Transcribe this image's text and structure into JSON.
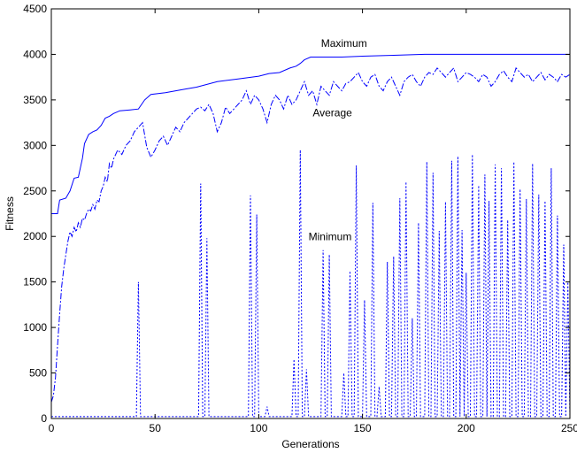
{
  "chart_data": {
    "type": "line",
    "title": "",
    "xlabel": "Generations",
    "ylabel": "Fitness",
    "xlim": [
      0,
      250
    ],
    "ylim": [
      0,
      4500
    ],
    "x_ticks": [
      0,
      50,
      100,
      150,
      200,
      250
    ],
    "y_ticks": [
      0,
      500,
      1000,
      1500,
      2000,
      2500,
      3000,
      3500,
      4000,
      4500
    ],
    "grid": false,
    "legend": "none",
    "series_color": "#0000ff",
    "annotations": [
      {
        "text": "Maximum",
        "x": 130,
        "y": 4080
      },
      {
        "text": "Average",
        "x": 126,
        "y": 3320
      },
      {
        "text": "Minimum",
        "x": 124,
        "y": 1960
      }
    ],
    "series": [
      {
        "key": "maximum",
        "style": "solid",
        "points": [
          [
            0,
            2250
          ],
          [
            3,
            2250
          ],
          [
            4,
            2400
          ],
          [
            7,
            2420
          ],
          [
            9,
            2500
          ],
          [
            11,
            2640
          ],
          [
            13,
            2650
          ],
          [
            15,
            2860
          ],
          [
            16,
            3020
          ],
          [
            18,
            3120
          ],
          [
            20,
            3150
          ],
          [
            22,
            3170
          ],
          [
            24,
            3220
          ],
          [
            26,
            3300
          ],
          [
            28,
            3320
          ],
          [
            30,
            3350
          ],
          [
            33,
            3380
          ],
          [
            38,
            3390
          ],
          [
            42,
            3400
          ],
          [
            45,
            3500
          ],
          [
            48,
            3560
          ],
          [
            55,
            3580
          ],
          [
            60,
            3600
          ],
          [
            65,
            3620
          ],
          [
            70,
            3640
          ],
          [
            80,
            3700
          ],
          [
            90,
            3730
          ],
          [
            100,
            3760
          ],
          [
            105,
            3790
          ],
          [
            110,
            3800
          ],
          [
            115,
            3850
          ],
          [
            118,
            3870
          ],
          [
            120,
            3900
          ],
          [
            122,
            3940
          ],
          [
            125,
            3970
          ],
          [
            140,
            3970
          ],
          [
            150,
            3980
          ],
          [
            165,
            3990
          ],
          [
            180,
            4000
          ],
          [
            250,
            4000
          ]
        ]
      },
      {
        "key": "average",
        "style": "dashdot",
        "points": [
          [
            0,
            180
          ],
          [
            1,
            250
          ],
          [
            2,
            450
          ],
          [
            3,
            800
          ],
          [
            4,
            1150
          ],
          [
            5,
            1450
          ],
          [
            6,
            1650
          ],
          [
            7,
            1800
          ],
          [
            8,
            1950
          ],
          [
            9,
            2050
          ],
          [
            10,
            2000
          ],
          [
            11,
            2100
          ],
          [
            12,
            2050
          ],
          [
            13,
            2150
          ],
          [
            14,
            2100
          ],
          [
            15,
            2200
          ],
          [
            16,
            2180
          ],
          [
            17,
            2250
          ],
          [
            18,
            2300
          ],
          [
            19,
            2280
          ],
          [
            20,
            2350
          ],
          [
            21,
            2300
          ],
          [
            22,
            2400
          ],
          [
            23,
            2380
          ],
          [
            24,
            2500
          ],
          [
            25,
            2550
          ],
          [
            26,
            2650
          ],
          [
            27,
            2600
          ],
          [
            28,
            2800
          ],
          [
            29,
            2750
          ],
          [
            30,
            2850
          ],
          [
            32,
            2950
          ],
          [
            34,
            2900
          ],
          [
            36,
            3000
          ],
          [
            38,
            3050
          ],
          [
            40,
            3150
          ],
          [
            42,
            3200
          ],
          [
            44,
            3250
          ],
          [
            46,
            2980
          ],
          [
            48,
            2870
          ],
          [
            50,
            2950
          ],
          [
            52,
            3050
          ],
          [
            54,
            3100
          ],
          [
            56,
            3000
          ],
          [
            58,
            3100
          ],
          [
            60,
            3200
          ],
          [
            62,
            3150
          ],
          [
            64,
            3250
          ],
          [
            66,
            3300
          ],
          [
            68,
            3350
          ],
          [
            70,
            3400
          ],
          [
            72,
            3420
          ],
          [
            74,
            3380
          ],
          [
            76,
            3450
          ],
          [
            78,
            3350
          ],
          [
            80,
            3150
          ],
          [
            82,
            3250
          ],
          [
            84,
            3420
          ],
          [
            86,
            3350
          ],
          [
            88,
            3400
          ],
          [
            90,
            3450
          ],
          [
            92,
            3500
          ],
          [
            94,
            3600
          ],
          [
            96,
            3450
          ],
          [
            98,
            3550
          ],
          [
            100,
            3500
          ],
          [
            102,
            3400
          ],
          [
            104,
            3250
          ],
          [
            106,
            3450
          ],
          [
            108,
            3550
          ],
          [
            110,
            3500
          ],
          [
            112,
            3400
          ],
          [
            114,
            3550
          ],
          [
            116,
            3450
          ],
          [
            118,
            3500
          ],
          [
            120,
            3600
          ],
          [
            122,
            3700
          ],
          [
            124,
            3550
          ],
          [
            126,
            3600
          ],
          [
            128,
            3450
          ],
          [
            130,
            3650
          ],
          [
            132,
            3600
          ],
          [
            134,
            3550
          ],
          [
            136,
            3700
          ],
          [
            138,
            3650
          ],
          [
            140,
            3600
          ],
          [
            142,
            3680
          ],
          [
            144,
            3700
          ],
          [
            146,
            3750
          ],
          [
            148,
            3800
          ],
          [
            150,
            3700
          ],
          [
            152,
            3650
          ],
          [
            154,
            3750
          ],
          [
            156,
            3780
          ],
          [
            158,
            3650
          ],
          [
            160,
            3600
          ],
          [
            162,
            3700
          ],
          [
            164,
            3750
          ],
          [
            166,
            3650
          ],
          [
            168,
            3550
          ],
          [
            170,
            3700
          ],
          [
            172,
            3750
          ],
          [
            174,
            3780
          ],
          [
            176,
            3700
          ],
          [
            178,
            3650
          ],
          [
            180,
            3750
          ],
          [
            182,
            3800
          ],
          [
            184,
            3780
          ],
          [
            186,
            3850
          ],
          [
            188,
            3800
          ],
          [
            190,
            3750
          ],
          [
            192,
            3800
          ],
          [
            194,
            3850
          ],
          [
            196,
            3700
          ],
          [
            198,
            3750
          ],
          [
            200,
            3800
          ],
          [
            202,
            3780
          ],
          [
            204,
            3750
          ],
          [
            206,
            3700
          ],
          [
            208,
            3780
          ],
          [
            210,
            3750
          ],
          [
            212,
            3650
          ],
          [
            214,
            3700
          ],
          [
            216,
            3780
          ],
          [
            218,
            3820
          ],
          [
            220,
            3750
          ],
          [
            222,
            3700
          ],
          [
            224,
            3850
          ],
          [
            226,
            3800
          ],
          [
            228,
            3750
          ],
          [
            230,
            3780
          ],
          [
            232,
            3700
          ],
          [
            234,
            3750
          ],
          [
            236,
            3800
          ],
          [
            238,
            3720
          ],
          [
            240,
            3780
          ],
          [
            242,
            3750
          ],
          [
            244,
            3700
          ],
          [
            246,
            3780
          ],
          [
            248,
            3750
          ],
          [
            250,
            3780
          ]
        ]
      },
      {
        "key": "minimum",
        "style": "dotted",
        "baseline": 20,
        "spikes": [
          [
            42,
            1500
          ],
          [
            72,
            2580
          ],
          [
            75,
            1980
          ],
          [
            96,
            2450
          ],
          [
            99,
            2240
          ],
          [
            104,
            130
          ],
          [
            117,
            650
          ],
          [
            120,
            2950
          ],
          [
            123,
            540
          ],
          [
            131,
            1850
          ],
          [
            134,
            1800
          ],
          [
            141,
            500
          ],
          [
            144,
            1620
          ],
          [
            147,
            2780
          ],
          [
            151,
            1300
          ],
          [
            155,
            2370
          ],
          [
            158,
            350
          ],
          [
            162,
            1720
          ],
          [
            165,
            1780
          ],
          [
            168,
            2420
          ],
          [
            171,
            2600
          ],
          [
            174,
            1100
          ],
          [
            177,
            2150
          ],
          [
            181,
            2820
          ],
          [
            184,
            2700
          ],
          [
            187,
            2060
          ],
          [
            190,
            2380
          ],
          [
            193,
            2830
          ],
          [
            196,
            2880
          ],
          [
            198,
            2070
          ],
          [
            200,
            1600
          ],
          [
            203,
            2900
          ],
          [
            206,
            2560
          ],
          [
            209,
            2680
          ],
          [
            211,
            2390
          ],
          [
            214,
            2790
          ],
          [
            217,
            2750
          ],
          [
            220,
            2180
          ],
          [
            223,
            2820
          ],
          [
            226,
            2520
          ],
          [
            229,
            2410
          ],
          [
            232,
            2800
          ],
          [
            235,
            2460
          ],
          [
            238,
            2390
          ],
          [
            241,
            2750
          ],
          [
            244,
            2230
          ],
          [
            247,
            1910
          ],
          [
            249,
            1500
          ]
        ]
      }
    ]
  }
}
